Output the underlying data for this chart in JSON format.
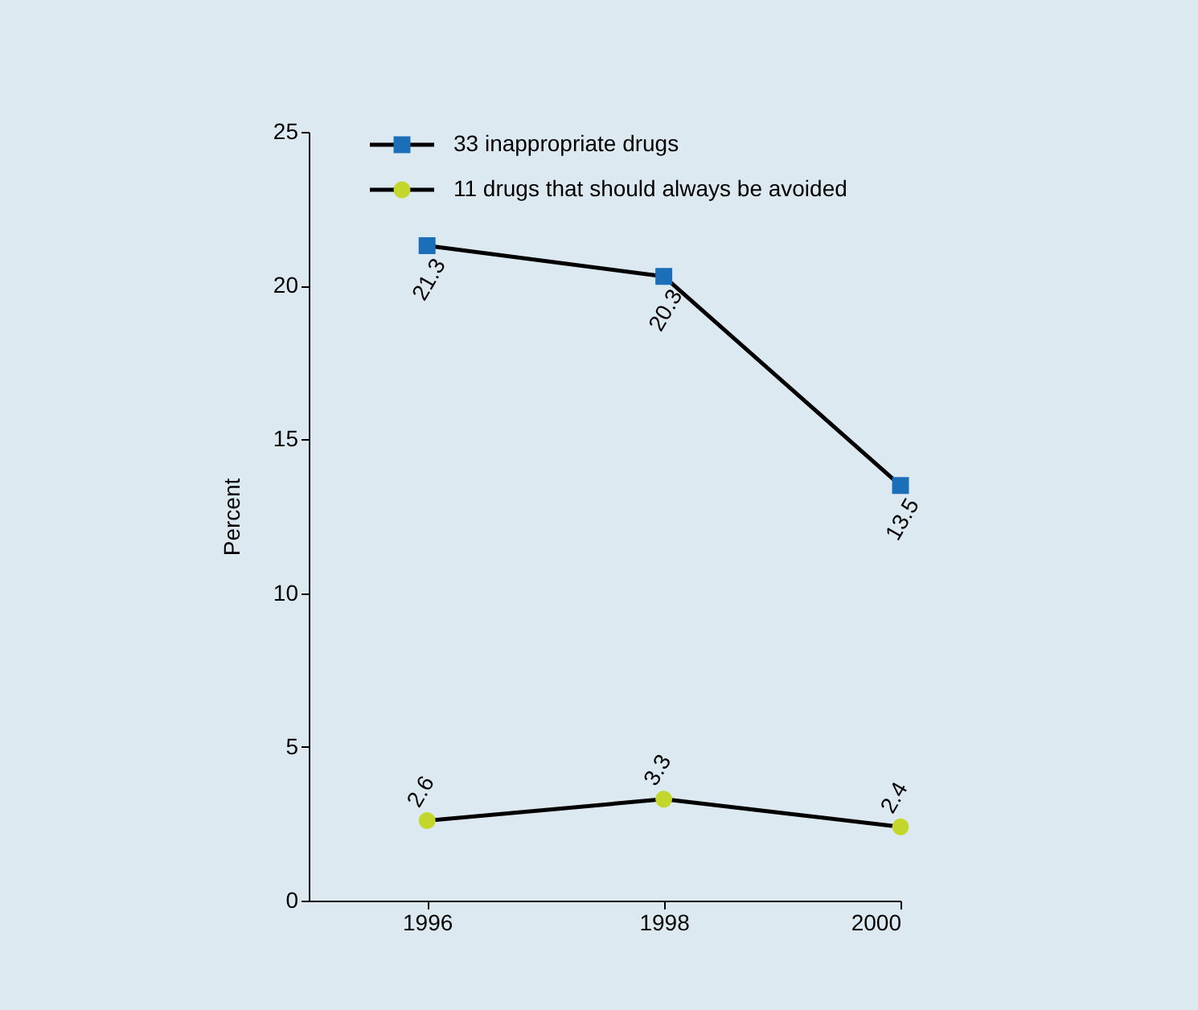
{
  "chart_data": {
    "type": "line",
    "ylabel": "Percent",
    "x": [
      1996,
      1998,
      2000
    ],
    "xlim": [
      1995,
      2000
    ],
    "xticks": [
      1996,
      1998,
      2000
    ],
    "ylim": [
      0,
      25
    ],
    "yticks": [
      0,
      5,
      10,
      15,
      20,
      25
    ],
    "grid": false,
    "legend": "top left",
    "data_labels": true,
    "series": [
      {
        "name": "33 inappropriate drugs",
        "color": "#1b6fb8",
        "marker": "square",
        "values": [
          21.3,
          20.3,
          13.5
        ]
      },
      {
        "name": "11 drugs that should always be avoided",
        "color": "#c3d62b",
        "marker": "circle",
        "values": [
          2.6,
          3.3,
          2.4
        ]
      }
    ]
  }
}
